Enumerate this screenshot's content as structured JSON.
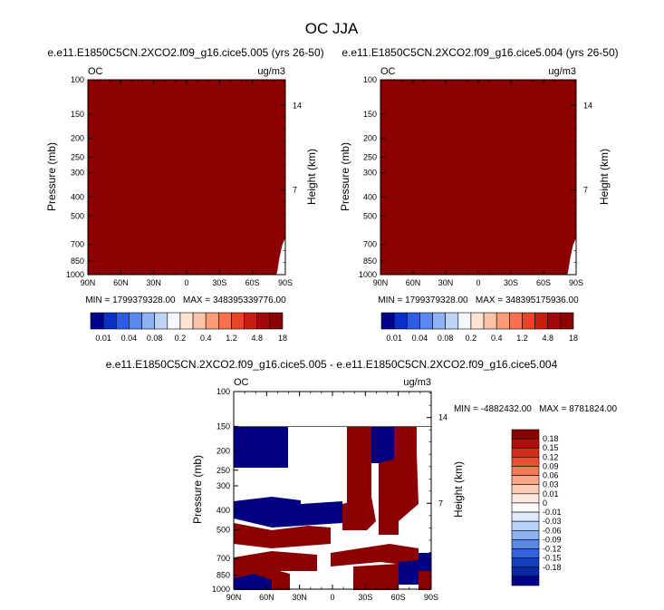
{
  "main_title": "OC JJA",
  "colors": {
    "dark_red": "#8B0000",
    "dark_blue": "#000080",
    "palette_top": [
      "#00008B",
      "#0A30C8",
      "#2E5CE6",
      "#5A87F0",
      "#8FB2F4",
      "#BCD3F8",
      "#F2F8FE",
      "#FFE4D4",
      "#FDC3A6",
      "#FB9C76",
      "#F87050",
      "#E84428",
      "#C81E12",
      "#A0080A",
      "#8B0000"
    ],
    "palette_diff": [
      "#8B0000",
      "#B0100A",
      "#D0301A",
      "#EC5030",
      "#F57A58",
      "#FAA88A",
      "#FDCBB6",
      "#FFE8DE",
      "#FFFFFF",
      "#DEEAFC",
      "#B8D2F8",
      "#8CB2F2",
      "#5A88EA",
      "#3262DC",
      "#1440C0",
      "#0A28A0",
      "#00008B"
    ]
  },
  "chart_data": [
    {
      "type": "heatmap",
      "panel": "top-left",
      "title": "e.e11.E1850C5CN.2XCO2.f09_g16.cice5.005 (yrs 26-50)",
      "left_label": "OC",
      "right_label": "ug/m3",
      "xlabel": "",
      "ylabel": "Pressure (mb)",
      "y2label": "Height (km)",
      "x_ticks": [
        "90N",
        "60N",
        "30N",
        "0",
        "30S",
        "60S",
        "90S"
      ],
      "y_ticks": [
        100,
        150,
        200,
        250,
        300,
        400,
        500,
        700,
        850,
        1000
      ],
      "y2_ticks": [
        14,
        7
      ],
      "ylim": [
        100,
        1000
      ],
      "fill": "uniform dark red (maximum contour level)",
      "min_max_text": "MIN = 1799379328.00   MAX = 348395339776.00",
      "colorbar_labels": [
        "0.01",
        "0.04",
        "0.08",
        "0.2",
        "0.4",
        "1.2",
        "4.8",
        "18"
      ]
    },
    {
      "type": "heatmap",
      "panel": "top-right",
      "title": "e.e11.E1850C5CN.2XCO2.f09_g16.cice5.004 (yrs 26-50)",
      "left_label": "OC",
      "right_label": "ug/m3",
      "xlabel": "",
      "ylabel": "Pressure (mb)",
      "y2label": "Height (km)",
      "x_ticks": [
        "90N",
        "60N",
        "30N",
        "0",
        "30S",
        "60S",
        "90S"
      ],
      "y_ticks": [
        100,
        150,
        200,
        250,
        300,
        400,
        500,
        700,
        850,
        1000
      ],
      "y2_ticks": [
        14,
        7
      ],
      "ylim": [
        100,
        1000
      ],
      "fill": "uniform dark red (maximum contour level)",
      "min_max_text": "MIN = 1799379328.00   MAX = 348395175936.00",
      "colorbar_labels": [
        "0.01",
        "0.04",
        "0.08",
        "0.2",
        "0.4",
        "1.2",
        "4.8",
        "18"
      ]
    },
    {
      "type": "heatmap",
      "panel": "bottom-difference",
      "title": "e.e11.E1850C5CN.2XCO2.f09_g16.cice5.005 - e.e11.E1850C5CN.2XCO2.f09_g16.cice5.004",
      "left_label": "OC",
      "right_label": "ug/m3",
      "xlabel": "",
      "ylabel": "Pressure (mb)",
      "y2label": "Height (km)",
      "x_ticks": [
        "90N",
        "60N",
        "30N",
        "0",
        "30S",
        "60S",
        "90S"
      ],
      "y_ticks": [
        100,
        150,
        200,
        250,
        300,
        400,
        500,
        700,
        850,
        1000
      ],
      "y2_ticks": [
        14,
        7
      ],
      "ylim": [
        100,
        1000
      ],
      "min_max_text": "MIN = -4882432.00   MAX = 8781824.00",
      "colorbar_labels": [
        "0.18",
        "0.15",
        "0.12",
        "0.09",
        "0.06",
        "0.03",
        "0.01",
        "0",
        "-0.01",
        "-0.03",
        "-0.06",
        "-0.09",
        "-0.12",
        "-0.15",
        "-0.18"
      ]
    }
  ]
}
